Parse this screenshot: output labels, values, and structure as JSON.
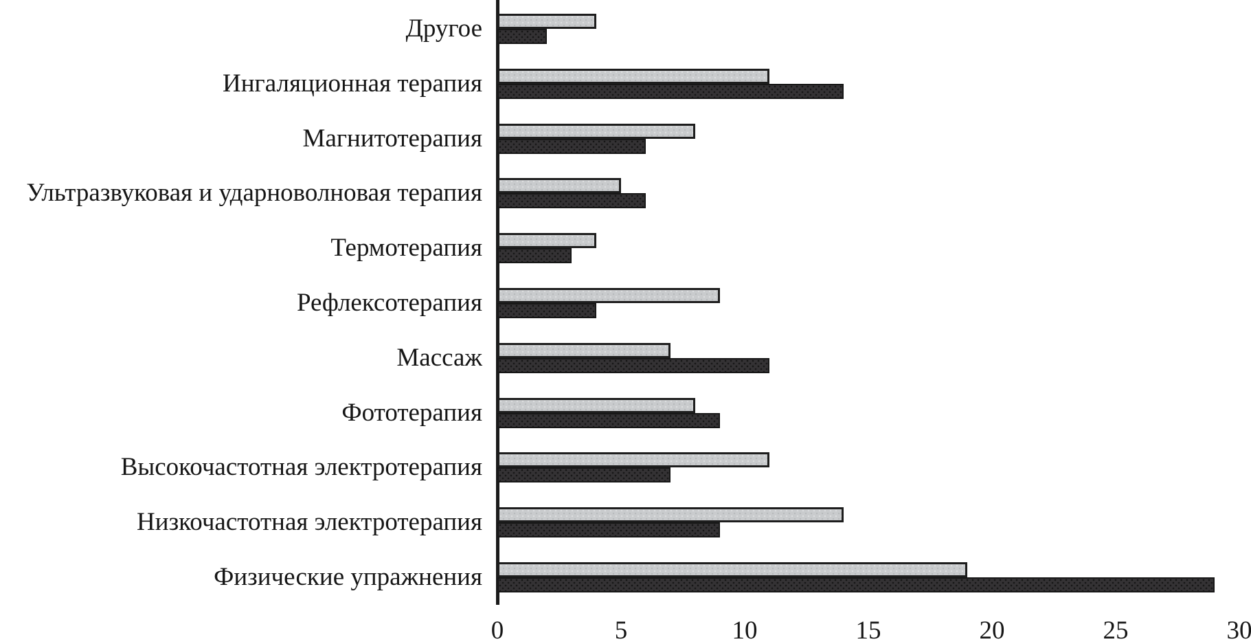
{
  "chart_data": {
    "type": "bar",
    "orientation": "horizontal",
    "title": "",
    "xlabel": "",
    "ylabel": "",
    "categories": [
      "Другое",
      "Ингаляционная терапия",
      "Магнитотерапия",
      "Ультразвуковая и ударноволновая терапия",
      "Термотерапия",
      "Рефлексотерапия",
      "Массаж",
      "Фототерапия",
      "Высокочастотная электротерапия",
      "Низкочастотная электротерапия",
      "Физические упражнения"
    ],
    "series": [
      {
        "name": "light-gray-bars",
        "color": "#c9cbcd",
        "values": [
          4,
          11,
          8,
          5,
          4,
          9,
          7,
          8,
          11,
          14,
          19
        ]
      },
      {
        "name": "dark-bars",
        "color": "#343234",
        "values": [
          2,
          14,
          6,
          6,
          3,
          4,
          11,
          9,
          7,
          9,
          29
        ]
      }
    ],
    "x_ticks": [
      "0",
      "5",
      "10",
      "15",
      "20",
      "25",
      "30"
    ],
    "xlim": [
      0,
      30
    ],
    "grid": false,
    "legend": "none"
  },
  "style": {
    "background": "#ffffff",
    "axis_color": "#1b1b1b",
    "text_color": "#161616"
  }
}
